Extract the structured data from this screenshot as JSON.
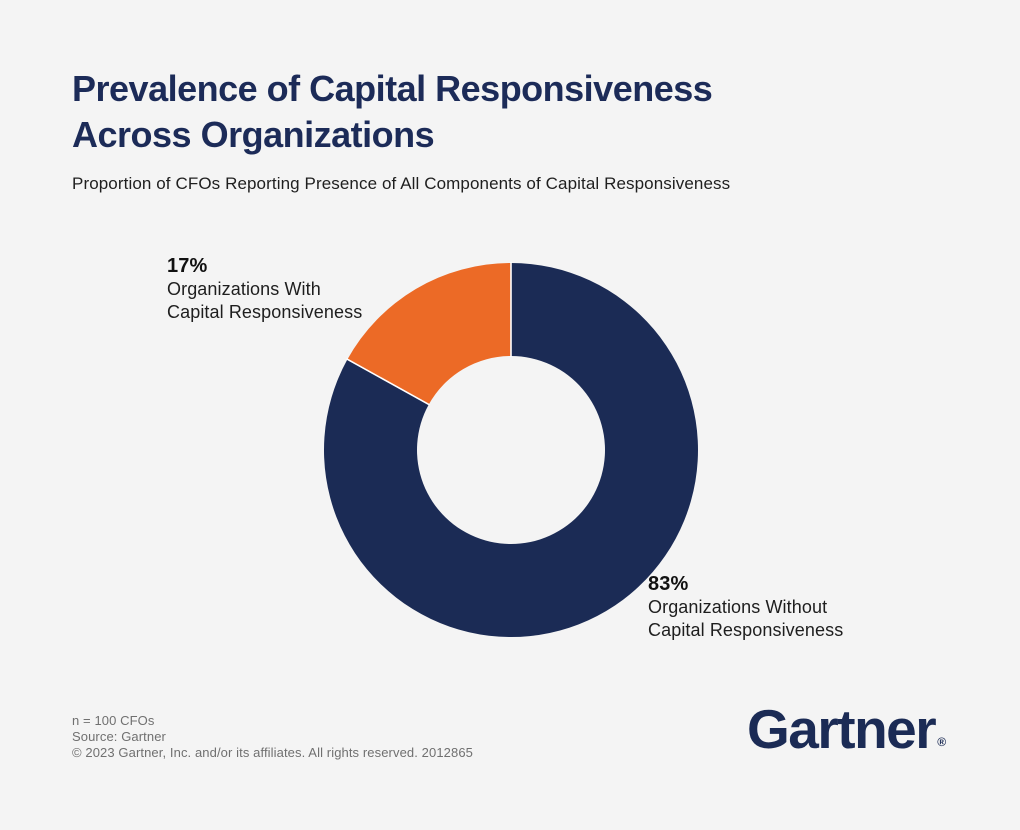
{
  "colors": {
    "background": "#F4F4F4",
    "brand_navy": "#1B2B55",
    "accent_orange": "#EC6A26",
    "title_navy": "#1C2B58",
    "body_text": "#1E1E1E",
    "footnote_gray": "#707070",
    "slice_divider": "#FFFFFF"
  },
  "header": {
    "title_lines": [
      "Prevalence of Capital Responsiveness",
      "Across Organizations"
    ],
    "subtitle": "Proportion of CFOs Reporting Presence of All Components of Capital Responsiveness"
  },
  "chart_data": {
    "type": "pie",
    "subtype": "donut",
    "title": "Prevalence of Capital Responsiveness Across Organizations",
    "subtitle": "Proportion of CFOs Reporting Presence of All Components of Capital Responsiveness",
    "categories": [
      "Organizations Without Capital Responsiveness",
      "Organizations With Capital Responsiveness"
    ],
    "values": [
      83,
      17
    ],
    "units": "%",
    "start_angle_deg_from_top_clockwise": 0,
    "slices": [
      {
        "label": "Organizations Without Capital Responsiveness",
        "value": 83,
        "color": "#1B2B55"
      },
      {
        "label": "Organizations With Capital Responsiveness",
        "value": 17,
        "color": "#EC6A26"
      }
    ],
    "legend_position": "callout-labels",
    "grid": false
  },
  "callouts": {
    "with": {
      "pct": "17%",
      "lines": [
        "Organizations With",
        "Capital Responsiveness"
      ]
    },
    "without": {
      "pct": "83%",
      "lines": [
        "Organizations Without",
        "Capital Responsiveness"
      ]
    }
  },
  "footer": {
    "n": "n = 100 CFOs",
    "source": "Source: Gartner",
    "copyright": "© 2023 Gartner, Inc. and/or its affiliates. All rights reserved. 2012865"
  },
  "logo": {
    "text": "Gartner",
    "registered": "®"
  }
}
